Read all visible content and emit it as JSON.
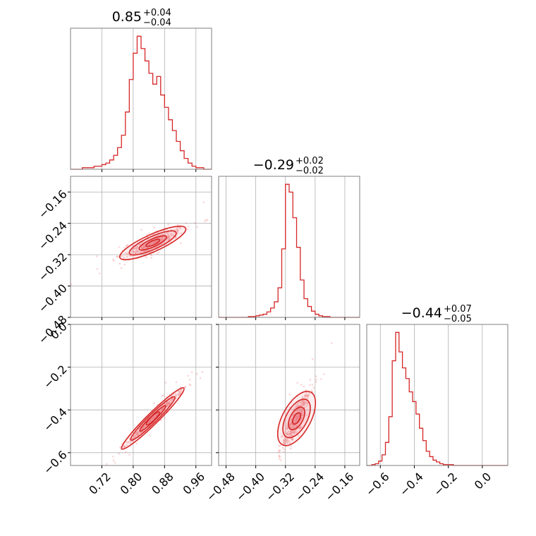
{
  "colors": {
    "accent": "#d62728",
    "scatter": "#f08a8a",
    "grid": "#b0b0b0",
    "frame": "#7f7f7f"
  },
  "chart_data": [
    {
      "type": "bar",
      "panel": "hist-p1",
      "title": {
        "value": "0.85",
        "plus": "+0.04",
        "minus": "−0.04"
      },
      "xlim": [
        0.64,
        1.0
      ],
      "xticks": [
        0.72,
        0.8,
        0.88,
        0.96
      ],
      "x": [
        0.655,
        0.665,
        0.675,
        0.685,
        0.695,
        0.705,
        0.715,
        0.725,
        0.735,
        0.745,
        0.755,
        0.765,
        0.775,
        0.785,
        0.795,
        0.805,
        0.815,
        0.825,
        0.835,
        0.845,
        0.855,
        0.865,
        0.875,
        0.885,
        0.895,
        0.905,
        0.915,
        0.925,
        0.935,
        0.945,
        0.955,
        0.965,
        0.975,
        0.985
      ],
      "values": [
        0,
        0,
        1,
        1,
        1,
        2,
        2,
        3,
        4,
        6,
        9,
        14,
        22,
        37,
        58,
        75,
        86,
        78,
        70,
        62,
        55,
        60,
        48,
        40,
        32,
        25,
        18,
        12,
        7,
        4,
        2,
        1,
        1,
        0
      ]
    },
    {
      "type": "bar",
      "panel": "hist-p2",
      "title": {
        "value": "−0.29",
        "plus": "+0.02",
        "minus": "−0.02"
      },
      "xlim": [
        -0.5,
        -0.12
      ],
      "xticks": [
        -0.48,
        -0.4,
        -0.32,
        -0.24,
        -0.16
      ],
      "x": [
        -0.415,
        -0.405,
        -0.395,
        -0.385,
        -0.375,
        -0.365,
        -0.355,
        -0.345,
        -0.335,
        -0.325,
        -0.315,
        -0.305,
        -0.295,
        -0.285,
        -0.275,
        -0.265,
        -0.255,
        -0.245,
        -0.235,
        -0.225,
        -0.215,
        -0.205,
        -0.195
      ],
      "values": [
        1,
        1,
        2,
        3,
        4,
        7,
        12,
        20,
        38,
        88,
        171,
        161,
        128,
        90,
        48,
        24,
        14,
        8,
        4,
        2,
        1,
        1,
        0
      ]
    },
    {
      "type": "bar",
      "panel": "hist-p3",
      "title": {
        "value": "−0.44",
        "plus": "+0.07",
        "minus": "−0.05"
      },
      "xlim": [
        -0.68,
        0.15
      ],
      "xticks": [
        -0.6,
        -0.4,
        -0.2,
        0.0
      ],
      "x": [
        -0.66,
        -0.64,
        -0.62,
        -0.6,
        -0.58,
        -0.56,
        -0.54,
        -0.52,
        -0.5,
        -0.48,
        -0.46,
        -0.44,
        -0.42,
        -0.4,
        -0.38,
        -0.36,
        -0.34,
        -0.32,
        -0.3,
        -0.28,
        -0.26,
        -0.24,
        -0.22,
        -0.2,
        -0.18,
        -0.16
      ],
      "values": [
        0,
        1,
        2,
        5,
        12,
        26,
        55,
        118,
        150,
        128,
        110,
        98,
        83,
        72,
        58,
        42,
        28,
        16,
        10,
        6,
        4,
        2,
        1,
        1,
        1,
        0
      ]
    },
    {
      "type": "scatter",
      "panel": "corner-p1-p2",
      "xlim": [
        0.64,
        1.0
      ],
      "ylim": [
        -0.48,
        -0.12
      ],
      "xticks": [
        0.72,
        0.8,
        0.88,
        0.96
      ],
      "yticks": [
        -0.48,
        -0.4,
        -0.32,
        -0.24,
        -0.16
      ],
      "center": [
        0.85,
        -0.29
      ],
      "correlation_slope": 0.45
    },
    {
      "type": "scatter",
      "panel": "corner-p1-p3",
      "xlim": [
        0.64,
        1.0
      ],
      "ylim": [
        -0.66,
        0.0
      ],
      "xticks": [
        0.72,
        0.8,
        0.88,
        0.96
      ],
      "yticks": [
        -0.6,
        -0.4,
        -0.2,
        0.0
      ],
      "center": [
        0.85,
        -0.44
      ],
      "correlation_slope": 1.8
    },
    {
      "type": "scatter",
      "panel": "corner-p2-p3",
      "xlim": [
        -0.5,
        -0.12
      ],
      "ylim": [
        -0.66,
        0.0
      ],
      "xticks": [
        -0.48,
        -0.4,
        -0.32,
        -0.24,
        -0.16
      ],
      "yticks": [
        -0.6,
        -0.4,
        -0.2,
        0.0
      ],
      "center": [
        -0.29,
        -0.44
      ],
      "correlation_slope": 3.2
    }
  ],
  "tick_labels": {
    "x_p1": [
      "0.72",
      "0.80",
      "0.88",
      "0.96"
    ],
    "x_p2": [
      "−0.48",
      "−0.40",
      "−0.32",
      "−0.24",
      "−0.16"
    ],
    "x_p3": [
      "−0.6",
      "−0.4",
      "−0.2",
      "0.0"
    ],
    "y_p2": [
      "−0.48",
      "−0.40",
      "−0.32",
      "−0.24",
      "−0.16"
    ],
    "y_p3": [
      "−0.6",
      "−0.4",
      "−0.2",
      "0.0"
    ]
  }
}
